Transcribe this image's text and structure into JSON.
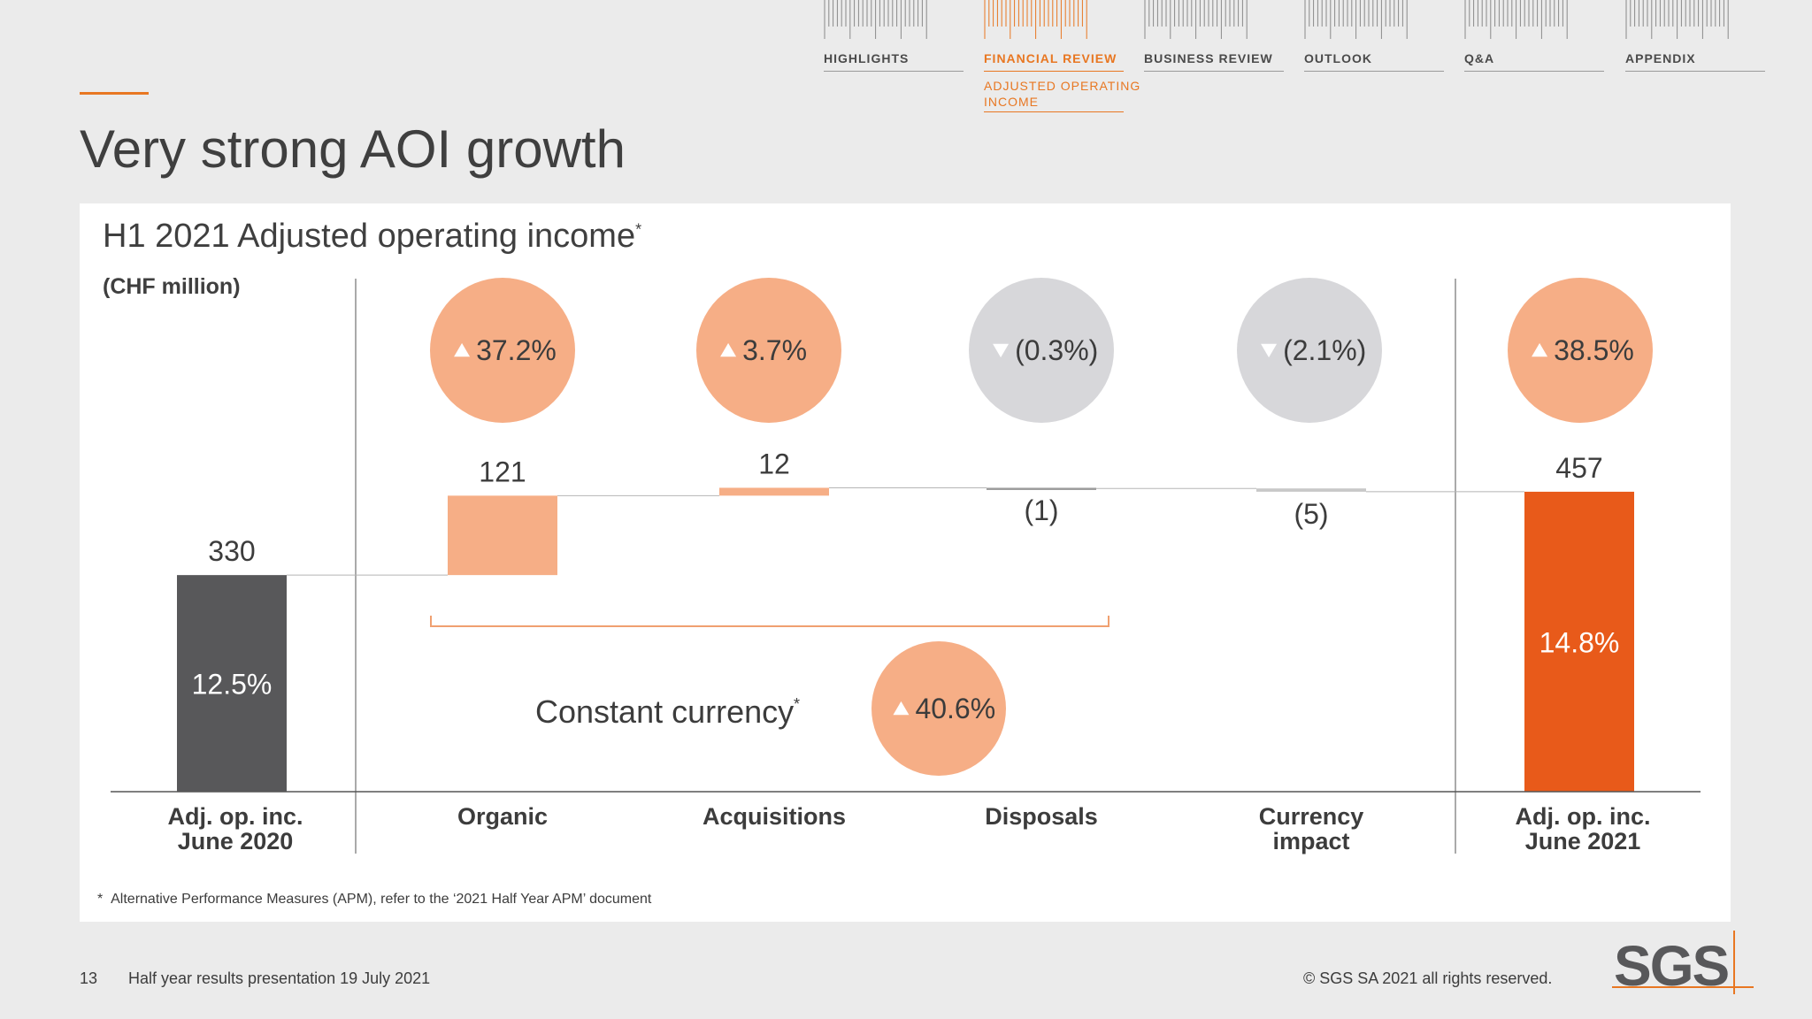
{
  "nav": {
    "items": [
      {
        "label": "HIGHLIGHTS",
        "active": false
      },
      {
        "label": "FINANCIAL REVIEW",
        "active": true,
        "sub": [
          "ADJUSTED OPERATING",
          "INCOME"
        ]
      },
      {
        "label": "BUSINESS REVIEW",
        "active": false
      },
      {
        "label": "OUTLOOK",
        "active": false
      },
      {
        "label": "Q&A",
        "active": false
      },
      {
        "label": "APPENDIX",
        "active": false
      }
    ]
  },
  "page": {
    "title": "Very strong AOI growth"
  },
  "panel": {
    "footnote_marker": "*",
    "footnote": "Alternative Performance Measures (APM), refer to the ‘2021 Half Year APM’ document"
  },
  "chart_data": {
    "type": "bar",
    "subtype": "waterfall",
    "title": "H1 2021 Adjusted operating income",
    "title_marker": "*",
    "unit_label": "(CHF million)",
    "categories": [
      "Adj. op. inc.\nJune 2020",
      "Organic",
      "Acquisitions",
      "Disposals",
      "Currency\nimpact",
      "Adj. op. inc.\nJune 2021"
    ],
    "bars": [
      {
        "category": "Adj. op. inc. June 2020",
        "kind": "total",
        "value": 330,
        "label": "330",
        "margin_label": "12.5%",
        "color": "#58585a"
      },
      {
        "category": "Organic",
        "kind": "delta",
        "value": 121,
        "label": "121",
        "growth": "37.2%",
        "direction": "up",
        "color": "#f6ae86"
      },
      {
        "category": "Acquisitions",
        "kind": "delta",
        "value": 12,
        "label": "12",
        "growth": "3.7%",
        "direction": "up",
        "color": "#f6ae86"
      },
      {
        "category": "Disposals",
        "kind": "delta",
        "value": -1,
        "label": "(1)",
        "growth": "(0.3%)",
        "direction": "down",
        "color": "#9b9b9b"
      },
      {
        "category": "Currency impact",
        "kind": "delta",
        "value": -5,
        "label": "(5)",
        "growth": "(2.1%)",
        "direction": "down",
        "color": "#c8c8c8"
      },
      {
        "category": "Adj. op. inc. June 2021",
        "kind": "total",
        "value": 457,
        "label": "457",
        "margin_label": "14.8%",
        "growth": "38.5%",
        "direction": "up",
        "color": "#e85a1a"
      }
    ],
    "constant_currency": {
      "label": "Constant currency",
      "marker": "*",
      "growth": "40.6%",
      "direction": "up"
    },
    "ylim": [
      0,
      500
    ],
    "colors": {
      "up_circle": "#f6ae86",
      "down_circle": "#d7d7da",
      "bracket": "#f0a070",
      "axis": "#555555"
    }
  },
  "footer": {
    "page_number": "13",
    "text": "Half year results presentation 19 July 2021",
    "copyright": "© SGS SA 2021 all rights reserved.",
    "logo_text": "SGS"
  }
}
